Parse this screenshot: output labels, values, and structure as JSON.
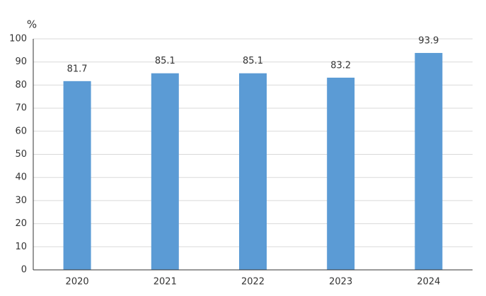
{
  "chart_data": {
    "type": "bar",
    "y_label": "%",
    "categories": [
      "2020",
      "2021",
      "2022",
      "2023",
      "2024"
    ],
    "values": [
      81.7,
      85.1,
      85.1,
      83.2,
      93.9
    ],
    "color": "#5b9bd5",
    "ylim": [
      0,
      100
    ],
    "yticks": [
      0,
      10,
      20,
      30,
      40,
      50,
      60,
      70,
      80,
      90,
      100
    ],
    "grid": true,
    "data_labels": true
  }
}
